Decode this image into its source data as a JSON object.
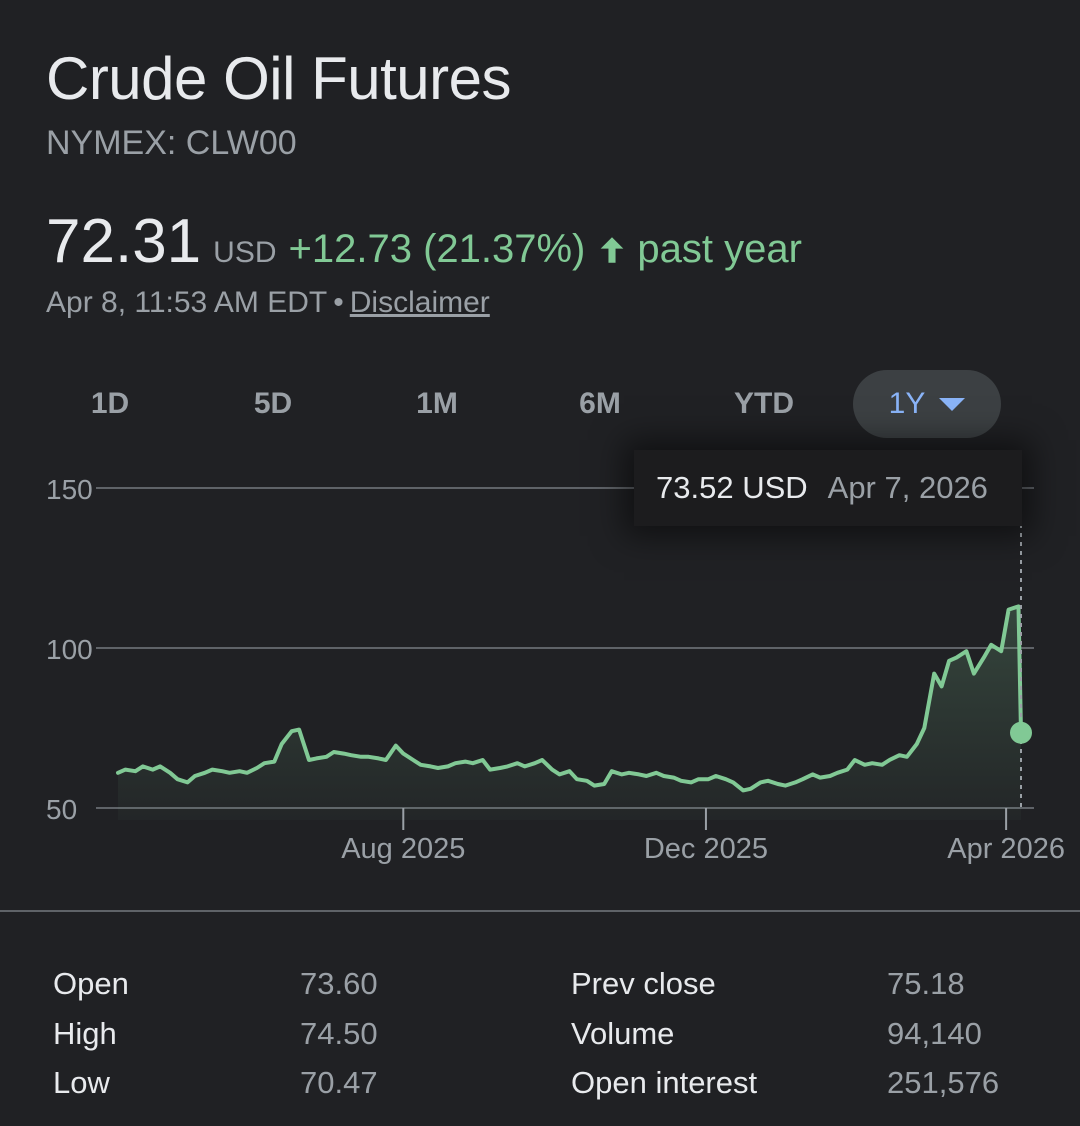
{
  "header": {
    "title": "Crude Oil Futures",
    "ticker": "NYMEX: CLW00",
    "price": "72.31",
    "currency": "USD",
    "change": "+12.73 (21.37%)",
    "period": "past year",
    "timestamp": "Apr 8, 11:53 AM EDT",
    "separator": "•",
    "disclaimer": "Disclaimer"
  },
  "ranges": [
    "1D",
    "5D",
    "1M",
    "6M",
    "YTD",
    "1Y"
  ],
  "active_range": "1Y",
  "tooltip": {
    "value": "73.52 USD",
    "date": "Apr 7, 2026"
  },
  "colors": {
    "accent_green": "#81c995",
    "accent_blue": "#8ab4f8",
    "background": "#202124"
  },
  "chart_data": {
    "type": "area",
    "ylim": [
      50,
      150
    ],
    "y_ticks": [
      {
        "value": 150,
        "label": "150"
      },
      {
        "value": 100,
        "label": "100"
      },
      {
        "value": 50,
        "label": "50"
      }
    ],
    "x_ticks": [
      {
        "date": "2025-08-01",
        "label": "Aug 2025"
      },
      {
        "date": "2025-12-01",
        "label": "Dec 2025"
      },
      {
        "date": "2026-04-01",
        "label": "Apr 2026"
      }
    ],
    "grid": true,
    "series": [
      {
        "points": [
          [
            "2025-04-08",
            61
          ],
          [
            "2025-04-11",
            62
          ],
          [
            "2025-04-15",
            61.5
          ],
          [
            "2025-04-18",
            63
          ],
          [
            "2025-04-22",
            62
          ],
          [
            "2025-04-25",
            63
          ],
          [
            "2025-04-29",
            61
          ],
          [
            "2025-05-02",
            59
          ],
          [
            "2025-05-06",
            58
          ],
          [
            "2025-05-09",
            60
          ],
          [
            "2025-05-13",
            61
          ],
          [
            "2025-05-16",
            62
          ],
          [
            "2025-05-20",
            61.5
          ],
          [
            "2025-05-23",
            61
          ],
          [
            "2025-05-27",
            61.5
          ],
          [
            "2025-05-30",
            61
          ],
          [
            "2025-06-03",
            62.5
          ],
          [
            "2025-06-06",
            64
          ],
          [
            "2025-06-10",
            64.5
          ],
          [
            "2025-06-13",
            70
          ],
          [
            "2025-06-17",
            74
          ],
          [
            "2025-06-20",
            74.5
          ],
          [
            "2025-06-24",
            65
          ],
          [
            "2025-06-27",
            65.5
          ],
          [
            "2025-07-01",
            66
          ],
          [
            "2025-07-04",
            67.5
          ],
          [
            "2025-07-08",
            67
          ],
          [
            "2025-07-11",
            66.5
          ],
          [
            "2025-07-15",
            66
          ],
          [
            "2025-07-18",
            66
          ],
          [
            "2025-07-22",
            65.5
          ],
          [
            "2025-07-25",
            65
          ],
          [
            "2025-07-29",
            69.5
          ],
          [
            "2025-08-01",
            67
          ],
          [
            "2025-08-05",
            65
          ],
          [
            "2025-08-08",
            63.5
          ],
          [
            "2025-08-12",
            63
          ],
          [
            "2025-08-15",
            62.5
          ],
          [
            "2025-08-19",
            63
          ],
          [
            "2025-08-22",
            64
          ],
          [
            "2025-08-26",
            64.5
          ],
          [
            "2025-08-29",
            64
          ],
          [
            "2025-09-02",
            65
          ],
          [
            "2025-09-05",
            62
          ],
          [
            "2025-09-09",
            62.5
          ],
          [
            "2025-09-12",
            63
          ],
          [
            "2025-09-16",
            64
          ],
          [
            "2025-09-19",
            63
          ],
          [
            "2025-09-23",
            64
          ],
          [
            "2025-09-26",
            65
          ],
          [
            "2025-09-30",
            62
          ],
          [
            "2025-10-03",
            60.5
          ],
          [
            "2025-10-07",
            61.5
          ],
          [
            "2025-10-10",
            59
          ],
          [
            "2025-10-14",
            58.5
          ],
          [
            "2025-10-17",
            57
          ],
          [
            "2025-10-21",
            57.5
          ],
          [
            "2025-10-24",
            61.5
          ],
          [
            "2025-10-28",
            60.5
          ],
          [
            "2025-10-31",
            61
          ],
          [
            "2025-11-04",
            60.5
          ],
          [
            "2025-11-07",
            60
          ],
          [
            "2025-11-11",
            61
          ],
          [
            "2025-11-14",
            60
          ],
          [
            "2025-11-18",
            59.5
          ],
          [
            "2025-11-21",
            58.5
          ],
          [
            "2025-11-25",
            58
          ],
          [
            "2025-11-28",
            59
          ],
          [
            "2025-12-02",
            59
          ],
          [
            "2025-12-05",
            60
          ],
          [
            "2025-12-09",
            59
          ],
          [
            "2025-12-12",
            58
          ],
          [
            "2025-12-16",
            55.5
          ],
          [
            "2025-12-19",
            56
          ],
          [
            "2025-12-23",
            58
          ],
          [
            "2025-12-26",
            58.5
          ],
          [
            "2025-12-30",
            57.5
          ],
          [
            "2026-01-02",
            57
          ],
          [
            "2026-01-06",
            58
          ],
          [
            "2026-01-09",
            59
          ],
          [
            "2026-01-13",
            60.5
          ],
          [
            "2026-01-16",
            59.5
          ],
          [
            "2026-01-20",
            60
          ],
          [
            "2026-01-23",
            61
          ],
          [
            "2026-01-27",
            62
          ],
          [
            "2026-01-30",
            65
          ],
          [
            "2026-02-03",
            63.5
          ],
          [
            "2026-02-06",
            64
          ],
          [
            "2026-02-10",
            63.5
          ],
          [
            "2026-02-13",
            65
          ],
          [
            "2026-02-17",
            66.5
          ],
          [
            "2026-02-20",
            66
          ],
          [
            "2026-02-24",
            70
          ],
          [
            "2026-02-27",
            75
          ],
          [
            "2026-03-03",
            92
          ],
          [
            "2026-03-06",
            88
          ],
          [
            "2026-03-09",
            96
          ],
          [
            "2026-03-12",
            97
          ],
          [
            "2026-03-16",
            99
          ],
          [
            "2026-03-19",
            92
          ],
          [
            "2026-03-23",
            97
          ],
          [
            "2026-03-26",
            101
          ],
          [
            "2026-03-30",
            99
          ],
          [
            "2026-04-02",
            112
          ],
          [
            "2026-04-06",
            113
          ],
          [
            "2026-04-07",
            73.52
          ]
        ]
      }
    ],
    "marker": {
      "date": "2026-04-07",
      "value": 73.52
    }
  },
  "stats": {
    "left": [
      {
        "label": "Open",
        "value": "73.60"
      },
      {
        "label": "High",
        "value": "74.50"
      },
      {
        "label": "Low",
        "value": "70.47"
      }
    ],
    "right": [
      {
        "label": "Prev close",
        "value": "75.18"
      },
      {
        "label": "Volume",
        "value": "94,140"
      },
      {
        "label": "Open interest",
        "value": "251,576"
      }
    ]
  }
}
